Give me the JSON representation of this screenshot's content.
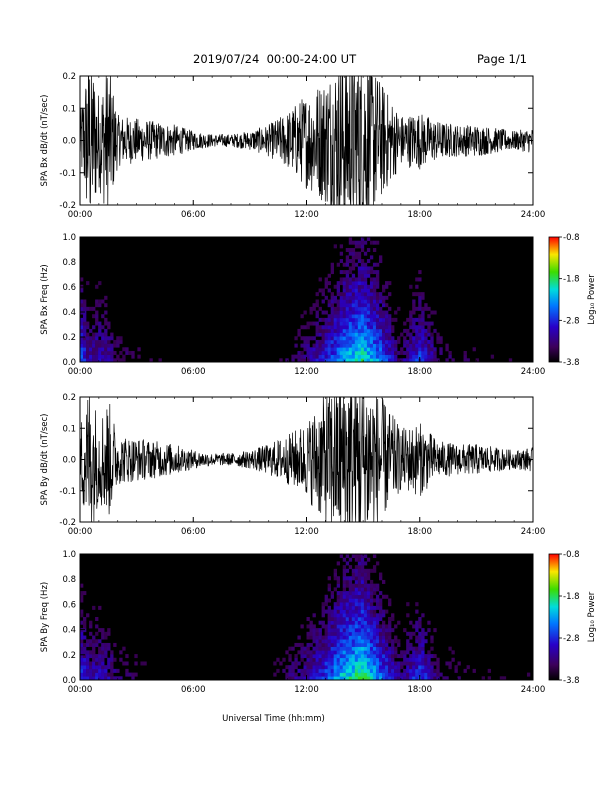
{
  "header": {
    "title": "2019/07/24  00:00-24:00 UT",
    "page": "Page 1/1"
  },
  "xaxis": {
    "label": "Universal Time (hh:mm)",
    "ticks": [
      "00:00",
      "06:00",
      "12:00",
      "18:00",
      "24:00"
    ],
    "range_hours": [
      0,
      24
    ]
  },
  "chart_data": [
    {
      "type": "line",
      "ylabel": "SPA Bx dB/dt (nT/sec)",
      "ylim": [
        -0.2,
        0.2
      ],
      "yticks": [
        "0.2",
        "0.1",
        "0.0",
        "-0.1",
        "-0.2"
      ],
      "x_hours": [
        0,
        0.5,
        1,
        1.5,
        2,
        3,
        4,
        5,
        6,
        7,
        8,
        9,
        10,
        11,
        12,
        13,
        14,
        15,
        16,
        17,
        18,
        19,
        20,
        21,
        22,
        23,
        24
      ],
      "amplitude": [
        0.08,
        0.3,
        0.15,
        0.25,
        0.08,
        0.07,
        0.06,
        0.05,
        0.03,
        0.02,
        0.02,
        0.03,
        0.05,
        0.09,
        0.15,
        0.2,
        0.3,
        0.3,
        0.18,
        0.08,
        0.09,
        0.06,
        0.05,
        0.05,
        0.04,
        0.03,
        0.04
      ],
      "color": "#000000"
    },
    {
      "type": "heatmap",
      "ylabel": "SPA Bx Freq (Hz)",
      "ylim": [
        0.0,
        1.0
      ],
      "yticks": [
        "1.0",
        "0.8",
        "0.6",
        "0.4",
        "0.2",
        "0.0"
      ],
      "colorbar": {
        "label": "Log₁₀ Power",
        "ticks": [
          "-0.8",
          "-1.8",
          "-2.8",
          "-3.8"
        ],
        "range": [
          -3.8,
          -0.8
        ]
      },
      "x_hours": [
        0,
        0.5,
        1,
        1.5,
        2,
        3,
        4,
        5,
        6,
        7,
        8,
        9,
        10,
        11,
        12,
        13,
        14,
        15,
        16,
        17,
        18,
        19,
        20,
        21,
        22,
        23,
        24
      ],
      "intensity": [
        0.55,
        0.35,
        0.4,
        0.35,
        0.25,
        0.2,
        0.15,
        0.12,
        0.08,
        0.06,
        0.06,
        0.08,
        0.12,
        0.2,
        0.3,
        0.45,
        0.65,
        0.75,
        0.55,
        0.25,
        0.5,
        0.25,
        0.2,
        0.18,
        0.15,
        0.15,
        0.15
      ]
    },
    {
      "type": "line",
      "ylabel": "SPA By dB/dt (nT/sec)",
      "ylim": [
        -0.2,
        0.2
      ],
      "yticks": [
        "0.2",
        "0.1",
        "0.0",
        "-0.1",
        "-0.2"
      ],
      "x_hours": [
        0,
        0.5,
        1,
        1.5,
        2,
        3,
        4,
        5,
        6,
        7,
        8,
        9,
        10,
        11,
        12,
        13,
        14,
        15,
        16,
        17,
        18,
        19,
        20,
        21,
        22,
        23,
        24
      ],
      "amplitude": [
        0.12,
        0.25,
        0.14,
        0.2,
        0.08,
        0.07,
        0.06,
        0.05,
        0.03,
        0.02,
        0.02,
        0.03,
        0.05,
        0.08,
        0.12,
        0.22,
        0.3,
        0.3,
        0.2,
        0.1,
        0.12,
        0.06,
        0.05,
        0.05,
        0.04,
        0.03,
        0.04
      ],
      "color": "#000000"
    },
    {
      "type": "heatmap",
      "ylabel": "SPA By Freq (Hz)",
      "ylim": [
        0.0,
        1.0
      ],
      "yticks": [
        "1.0",
        "0.8",
        "0.6",
        "0.4",
        "0.2",
        "0.0"
      ],
      "colorbar": {
        "label": "Log₁₀ Power",
        "ticks": [
          "-0.8",
          "-1.8",
          "-2.8",
          "-3.8"
        ],
        "range": [
          -3.8,
          -0.8
        ]
      },
      "x_hours": [
        0,
        0.5,
        1,
        1.5,
        2,
        3,
        4,
        5,
        6,
        7,
        8,
        9,
        10,
        11,
        12,
        13,
        14,
        15,
        16,
        17,
        18,
        19,
        20,
        21,
        22,
        23,
        24
      ],
      "intensity": [
        0.55,
        0.35,
        0.4,
        0.35,
        0.25,
        0.2,
        0.15,
        0.12,
        0.08,
        0.06,
        0.06,
        0.08,
        0.15,
        0.25,
        0.35,
        0.5,
        0.7,
        0.8,
        0.55,
        0.3,
        0.5,
        0.25,
        0.2,
        0.18,
        0.15,
        0.15,
        0.15
      ]
    }
  ]
}
